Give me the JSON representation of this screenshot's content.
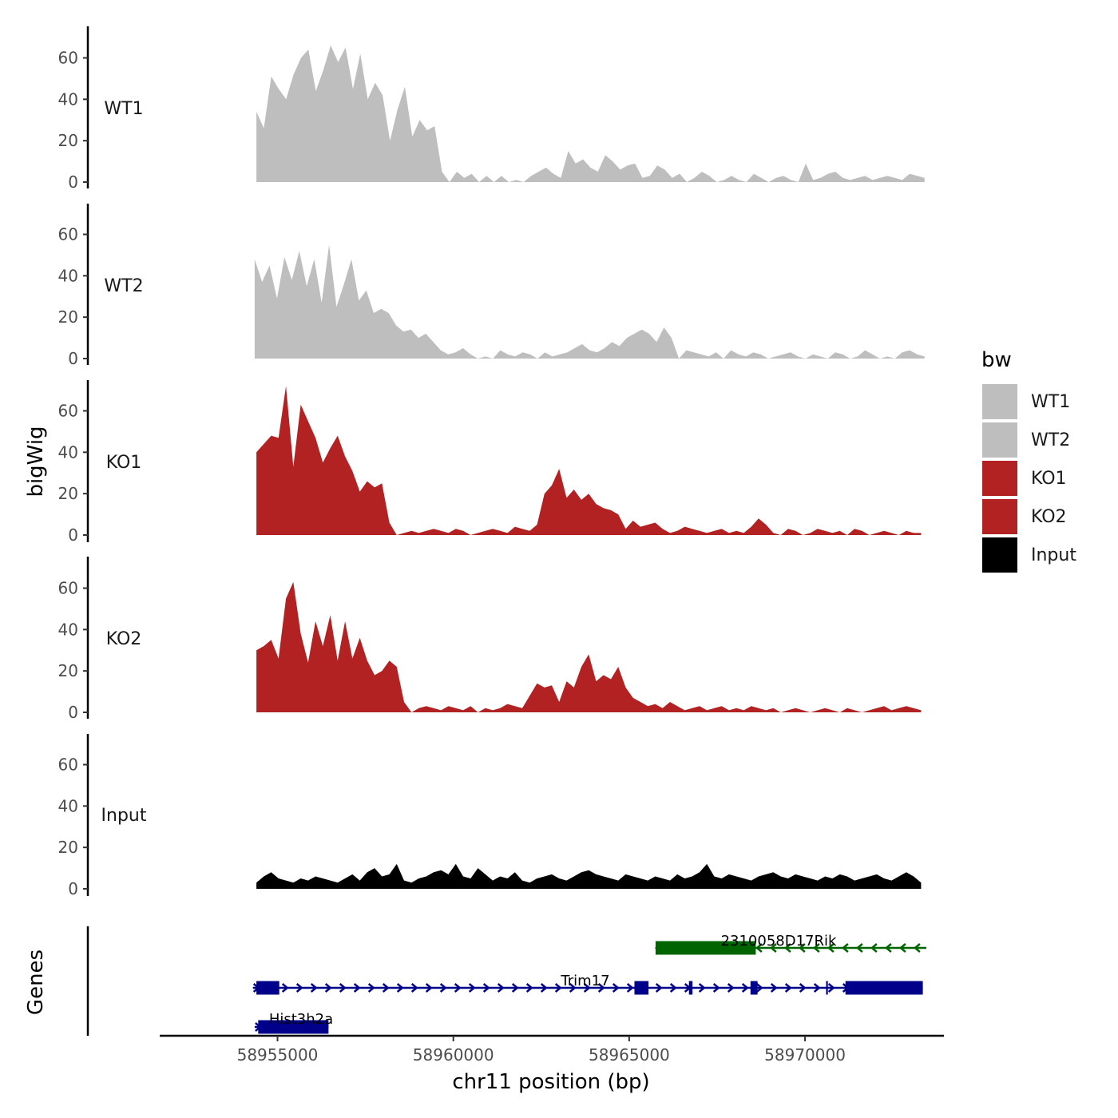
{
  "chart_data": {
    "type": "area",
    "title": "",
    "xlabel": "chr11 position (bp)",
    "ylabel": "bigWig",
    "genes_label": "Genes",
    "legend": {
      "title": "bw",
      "placement": "right"
    },
    "ylim": [
      0,
      75
    ],
    "y_ticks": [
      0,
      20,
      40,
      60
    ],
    "xlim": [
      58951650,
      58973950
    ],
    "x_ticks": [
      58955000,
      58960000,
      58965000,
      58970000
    ],
    "x_tick_labels": [
      "58955000",
      "58960000",
      "58965000",
      "58970000"
    ],
    "colors": {
      "WT1": "#bebebe",
      "WT2": "#bebebe",
      "KO1": "#b22222",
      "KO2": "#b22222",
      "Input": "#000000"
    },
    "series": [
      {
        "name": "WT1",
        "x_start": 58954400,
        "x_end": 58973400,
        "values": [
          34,
          26,
          51,
          45,
          40,
          52,
          60,
          64,
          44,
          54,
          66,
          58,
          65,
          45,
          62,
          40,
          48,
          42,
          20,
          35,
          46,
          22,
          30,
          25,
          27,
          5,
          0,
          5,
          2,
          4,
          0,
          3,
          0,
          3,
          0,
          1,
          0,
          3,
          5,
          7,
          4,
          2,
          15,
          9,
          11,
          7,
          5,
          13,
          10,
          6,
          8,
          9,
          2,
          3,
          8,
          6,
          2,
          4,
          0,
          2,
          5,
          3,
          0,
          1,
          3,
          1,
          0,
          4,
          2,
          0,
          2,
          3,
          1,
          0,
          9,
          1,
          2,
          4,
          5,
          2,
          1,
          2,
          3,
          1,
          2,
          3,
          2,
          1,
          4,
          3,
          2
        ]
      },
      {
        "name": "WT2",
        "x_start": 58954350,
        "x_end": 58973400,
        "values": [
          48,
          37,
          45,
          29,
          49,
          38,
          52,
          35,
          48,
          27,
          55,
          25,
          36,
          48,
          28,
          33,
          22,
          24,
          22,
          16,
          13,
          14,
          10,
          12,
          8,
          4,
          2,
          3,
          5,
          2,
          0,
          1,
          0,
          4,
          2,
          1,
          3,
          2,
          0,
          3,
          1,
          2,
          3,
          5,
          7,
          4,
          3,
          5,
          8,
          6,
          10,
          12,
          14,
          12,
          8,
          15,
          10,
          0,
          4,
          3,
          2,
          1,
          3,
          0,
          4,
          2,
          1,
          3,
          2,
          0,
          1,
          2,
          3,
          1,
          0,
          2,
          1,
          0,
          3,
          2,
          0,
          1,
          4,
          2,
          0,
          1,
          0,
          3,
          4,
          2,
          1
        ]
      },
      {
        "name": "KO1",
        "x_start": 58954400,
        "x_end": 58973300,
        "values": [
          40,
          44,
          48,
          47,
          72,
          33,
          63,
          55,
          47,
          35,
          42,
          48,
          38,
          31,
          21,
          26,
          23,
          25,
          6,
          0,
          1,
          2,
          1,
          2,
          3,
          2,
          1,
          3,
          2,
          0,
          1,
          2,
          3,
          2,
          1,
          4,
          3,
          2,
          5,
          20,
          24,
          32,
          18,
          22,
          17,
          20,
          15,
          13,
          12,
          10,
          3,
          7,
          4,
          5,
          6,
          3,
          1,
          2,
          4,
          3,
          2,
          1,
          2,
          3,
          1,
          2,
          1,
          4,
          8,
          5,
          1,
          0,
          3,
          2,
          0,
          1,
          3,
          2,
          1,
          2,
          0,
          3,
          2,
          0,
          1,
          2,
          1,
          0,
          2,
          1,
          1
        ]
      },
      {
        "name": "KO2",
        "x_start": 58954400,
        "x_end": 58973300,
        "values": [
          30,
          32,
          35,
          26,
          55,
          63,
          38,
          24,
          44,
          32,
          47,
          25,
          44,
          26,
          36,
          25,
          18,
          20,
          25,
          22,
          5,
          0,
          2,
          3,
          2,
          1,
          3,
          2,
          1,
          3,
          0,
          2,
          1,
          2,
          4,
          3,
          2,
          8,
          14,
          12,
          13,
          5,
          15,
          12,
          22,
          28,
          15,
          18,
          16,
          22,
          12,
          7,
          5,
          3,
          4,
          2,
          5,
          3,
          1,
          2,
          3,
          1,
          2,
          3,
          1,
          2,
          1,
          3,
          2,
          1,
          2,
          0,
          1,
          2,
          1,
          0,
          1,
          2,
          1,
          0,
          2,
          1,
          0,
          1,
          2,
          3,
          1,
          2,
          3,
          2,
          1
        ]
      },
      {
        "name": "Input",
        "x_start": 58954400,
        "x_end": 58973300,
        "values": [
          3,
          6,
          8,
          5,
          4,
          3,
          5,
          4,
          6,
          5,
          4,
          3,
          5,
          7,
          4,
          8,
          10,
          6,
          7,
          12,
          4,
          3,
          5,
          6,
          8,
          9,
          7,
          12,
          6,
          5,
          10,
          7,
          4,
          6,
          5,
          8,
          4,
          3,
          5,
          6,
          7,
          5,
          4,
          6,
          8,
          9,
          7,
          6,
          5,
          4,
          7,
          6,
          5,
          4,
          6,
          5,
          4,
          7,
          5,
          6,
          8,
          12,
          6,
          5,
          7,
          6,
          5,
          4,
          6,
          7,
          8,
          6,
          5,
          7,
          6,
          5,
          4,
          6,
          5,
          7,
          6,
          4,
          5,
          6,
          7,
          5,
          4,
          6,
          8,
          6,
          3
        ]
      }
    ],
    "genes": [
      {
        "name": "2310058D17Rik",
        "strand": "-",
        "color": "#006400",
        "start": 58965750,
        "end": 58973450,
        "exons": [
          [
            58965750,
            58968600
          ]
        ]
      },
      {
        "name": "Trim17",
        "strand": "+",
        "color": "#00008b",
        "start": 58954300,
        "end": 58973350,
        "exons": [
          [
            58954400,
            58955050
          ],
          [
            58965150,
            58965550
          ],
          [
            58966700,
            58966800
          ],
          [
            58968450,
            58968650
          ],
          [
            58970600,
            58970650
          ],
          [
            58971150,
            58973350
          ]
        ]
      },
      {
        "name": "Hist3h2a",
        "strand": "+",
        "color": "#00008b",
        "start": 58954350,
        "end": 58956450,
        "exons": [
          [
            58954450,
            58956450
          ]
        ]
      }
    ]
  }
}
